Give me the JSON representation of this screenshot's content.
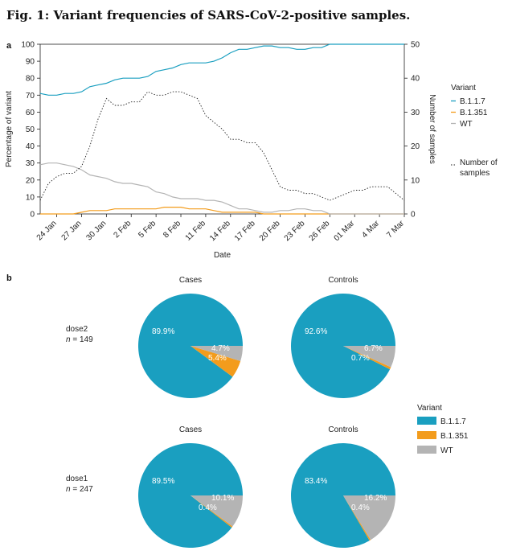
{
  "figure_title": "Fig. 1: Variant frequencies of SARS-CoV-2-positive samples.",
  "colors": {
    "B.1.1.7": "#1a9fc0",
    "B.1.351": "#f39c1c",
    "WT": "#b4b4b4",
    "samples": "#222222"
  },
  "chart_data": [
    {
      "panel": "a",
      "type": "line",
      "xlabel": "Date",
      "ylabel": "Percentage of variant",
      "y2label": "Number of samples",
      "ylim": [
        0,
        100
      ],
      "y2lim": [
        0,
        50
      ],
      "yticks": [
        0,
        10,
        20,
        30,
        40,
        50,
        60,
        70,
        80,
        90,
        100
      ],
      "y2ticks": [
        0,
        10,
        20,
        30,
        40,
        50
      ],
      "x_tick_labels": [
        "24 Jan",
        "27 Jan",
        "30 Jan",
        "2 Feb",
        "5 Feb",
        "8 Feb",
        "11 Feb",
        "14 Feb",
        "17 Feb",
        "20 Feb",
        "23 Feb",
        "26 Feb",
        "01 Mar",
        "4 Mar",
        "7 Mar"
      ],
      "x": [
        "22 Jan",
        "23 Jan",
        "24 Jan",
        "25 Jan",
        "26 Jan",
        "27 Jan",
        "28 Jan",
        "29 Jan",
        "30 Jan",
        "31 Jan",
        "1 Feb",
        "2 Feb",
        "3 Feb",
        "4 Feb",
        "5 Feb",
        "6 Feb",
        "7 Feb",
        "8 Feb",
        "9 Feb",
        "10 Feb",
        "11 Feb",
        "12 Feb",
        "13 Feb",
        "14 Feb",
        "15 Feb",
        "16 Feb",
        "17 Feb",
        "18 Feb",
        "19 Feb",
        "20 Feb",
        "21 Feb",
        "22 Feb",
        "23 Feb",
        "24 Feb",
        "25 Feb",
        "26 Feb",
        "27 Feb",
        "28 Feb",
        "1 Mar",
        "2 Mar",
        "3 Mar",
        "4 Mar",
        "5 Mar",
        "6 Mar",
        "7 Mar"
      ],
      "legend_title": "Variant",
      "legend_position": "right",
      "series": [
        {
          "name": "B.1.1.7",
          "axis": "left",
          "style": "solid",
          "values": [
            71,
            70,
            70,
            71,
            71,
            72,
            75,
            76,
            77,
            79,
            80,
            80,
            80,
            81,
            84,
            85,
            86,
            88,
            89,
            89,
            89,
            90,
            92,
            95,
            97,
            97,
            98,
            99,
            99,
            98,
            98,
            97,
            97,
            98,
            98,
            100,
            100,
            100,
            100,
            100,
            100,
            100,
            100,
            100,
            100
          ]
        },
        {
          "name": "B.1.351",
          "axis": "left",
          "style": "solid",
          "values": [
            0,
            0,
            0,
            0,
            0,
            1,
            2,
            2,
            2,
            3,
            3,
            3,
            3,
            3,
            3,
            4,
            4,
            4,
            3,
            3,
            3,
            2,
            1,
            1,
            1,
            1,
            1,
            0,
            0,
            0,
            0,
            0,
            0,
            0,
            0,
            0,
            0,
            0,
            0,
            0,
            0,
            0,
            0,
            0,
            0
          ]
        },
        {
          "name": "WT",
          "axis": "left",
          "style": "solid",
          "values": [
            29,
            30,
            30,
            29,
            28,
            26,
            23,
            22,
            21,
            19,
            18,
            18,
            17,
            16,
            13,
            12,
            10,
            9,
            9,
            9,
            8,
            8,
            7,
            5,
            3,
            3,
            2,
            1,
            1,
            2,
            2,
            3,
            3,
            2,
            2,
            0,
            0,
            0,
            0,
            0,
            0,
            0,
            0,
            0,
            0
          ]
        },
        {
          "name": "Number of samples",
          "axis": "right",
          "style": "dashed",
          "values": [
            4,
            9,
            11,
            12,
            12,
            14,
            20,
            28,
            34,
            32,
            32,
            33,
            33,
            36,
            35,
            35,
            36,
            36,
            35,
            34,
            29,
            27,
            25,
            22,
            22,
            21,
            21,
            18,
            13,
            8,
            7,
            7,
            6,
            6,
            5,
            4,
            5,
            6,
            7,
            7,
            8,
            8,
            8,
            6,
            4
          ]
        }
      ]
    },
    {
      "panel": "b",
      "type": "pie",
      "legend_title": "Variant",
      "legend_position": "right",
      "legend_entries": [
        "B.1.1.7",
        "B.1.351",
        "WT"
      ],
      "column_titles": [
        "Cases",
        "Controls"
      ],
      "rows": [
        {
          "label_line1": "dose2",
          "label_n": "n",
          "label_value": " = 149",
          "pies": [
            {
              "slices": [
                {
                  "name": "B.1.1.7",
                  "value": 89.9,
                  "label": "89.9%"
                },
                {
                  "name": "B.1.351",
                  "value": 5.4,
                  "label": "5.4%"
                },
                {
                  "name": "WT",
                  "value": 4.7,
                  "label": "4.7%"
                }
              ]
            },
            {
              "slices": [
                {
                  "name": "B.1.1.7",
                  "value": 92.6,
                  "label": "92.6%"
                },
                {
                  "name": "B.1.351",
                  "value": 0.7,
                  "label": "0.7%"
                },
                {
                  "name": "WT",
                  "value": 6.7,
                  "label": "6.7%"
                }
              ]
            }
          ]
        },
        {
          "label_line1": "dose1",
          "label_n": "n",
          "label_value": " = 247",
          "pies": [
            {
              "slices": [
                {
                  "name": "B.1.1.7",
                  "value": 89.5,
                  "label": "89.5%"
                },
                {
                  "name": "B.1.351",
                  "value": 0.4,
                  "label": "0.4%"
                },
                {
                  "name": "WT",
                  "value": 10.1,
                  "label": "10.1%"
                }
              ]
            },
            {
              "slices": [
                {
                  "name": "B.1.1.7",
                  "value": 83.4,
                  "label": "83.4%"
                },
                {
                  "name": "B.1.351",
                  "value": 0.4,
                  "label": "0.4%"
                },
                {
                  "name": "WT",
                  "value": 16.2,
                  "label": "16.2%"
                }
              ]
            }
          ]
        }
      ]
    }
  ]
}
